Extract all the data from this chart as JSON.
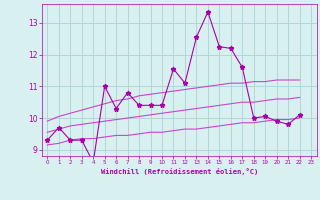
{
  "x": [
    0,
    1,
    2,
    3,
    4,
    5,
    6,
    7,
    8,
    9,
    10,
    11,
    12,
    13,
    14,
    15,
    16,
    17,
    18,
    19,
    20,
    21,
    22,
    23
  ],
  "y_main": [
    9.3,
    9.7,
    9.3,
    9.3,
    8.6,
    11.0,
    10.3,
    10.8,
    10.4,
    10.4,
    10.4,
    11.55,
    11.1,
    12.55,
    13.35,
    12.25,
    12.2,
    11.6,
    10.0,
    10.05,
    9.9,
    9.8,
    10.1,
    null
  ],
  "y_upper": [
    9.9,
    10.05,
    10.15,
    10.25,
    10.35,
    10.45,
    10.55,
    10.6,
    10.7,
    10.75,
    10.8,
    10.85,
    10.9,
    10.95,
    11.0,
    11.05,
    11.1,
    11.1,
    11.15,
    11.15,
    11.2,
    11.2,
    11.2,
    null
  ],
  "y_mid": [
    9.55,
    9.65,
    9.75,
    9.8,
    9.85,
    9.9,
    9.95,
    10.0,
    10.05,
    10.1,
    10.15,
    10.2,
    10.25,
    10.3,
    10.35,
    10.4,
    10.45,
    10.5,
    10.5,
    10.55,
    10.6,
    10.6,
    10.65,
    null
  ],
  "y_lower": [
    9.15,
    9.2,
    9.3,
    9.35,
    9.35,
    9.4,
    9.45,
    9.45,
    9.5,
    9.55,
    9.55,
    9.6,
    9.65,
    9.65,
    9.7,
    9.75,
    9.8,
    9.85,
    9.85,
    9.9,
    9.95,
    9.95,
    10.0,
    null
  ],
  "color_main": "#aa00aa",
  "color_bands": "#cc44cc",
  "bg_color": "#d8f0f0",
  "grid_color": "#b0d8d8",
  "text_color": "#aa00aa",
  "xlabel": "Windchill (Refroidissement éolien,°C)",
  "ylim": [
    8.8,
    13.6
  ],
  "xlim": [
    -0.5,
    23.5
  ],
  "yticks": [
    9,
    10,
    11,
    12,
    13
  ],
  "xticks": [
    0,
    1,
    2,
    3,
    4,
    5,
    6,
    7,
    8,
    9,
    10,
    11,
    12,
    13,
    14,
    15,
    16,
    17,
    18,
    19,
    20,
    21,
    22,
    23
  ]
}
